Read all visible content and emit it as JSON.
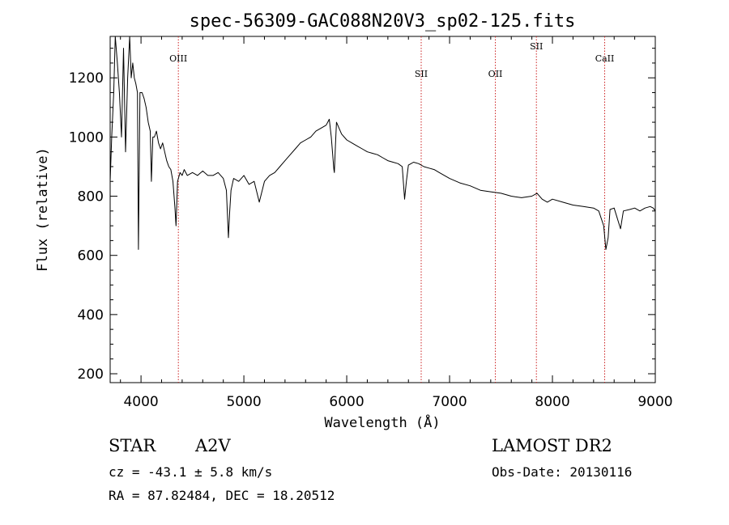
{
  "chart_data": {
    "type": "line",
    "title": "spec-56309-GAC088N20V3_sp02-125.fits",
    "xlabel": "Wavelength (Å)",
    "ylabel": "Flux (relative)",
    "xlim": [
      3700,
      9000
    ],
    "ylim": [
      170,
      1340
    ],
    "xticks": [
      4000,
      5000,
      6000,
      7000,
      8000,
      9000
    ],
    "yticks": [
      200,
      400,
      600,
      800,
      1000,
      1200
    ],
    "grid": false,
    "line_color": "#000000",
    "marker_color": "#cc2222",
    "line_markers": [
      {
        "label": "OIII",
        "wavelength": 4363
      },
      {
        "label": "SII",
        "wavelength": 6724
      },
      {
        "label": "OII",
        "wavelength": 7445
      },
      {
        "label": "SII",
        "wavelength": 7844
      },
      {
        "label": "CaII",
        "wavelength": 8508
      }
    ],
    "series": [
      {
        "x": [
          3700,
          3715,
          3735,
          3750,
          3770,
          3790,
          3810,
          3830,
          3850,
          3870,
          3890,
          3905,
          3920,
          3935,
          3950,
          3965,
          3975,
          3990,
          4010,
          4030,
          4050,
          4070,
          4090,
          4101,
          4115,
          4130,
          4150,
          4170,
          4190,
          4210,
          4230,
          4250,
          4270,
          4290,
          4310,
          4330,
          4340,
          4355,
          4380,
          4400,
          4420,
          4450,
          4500,
          4550,
          4600,
          4650,
          4700,
          4750,
          4800,
          4830,
          4850,
          4861,
          4875,
          4900,
          4950,
          5000,
          5050,
          5100,
          5150,
          5200,
          5250,
          5300,
          5350,
          5400,
          5450,
          5500,
          5550,
          5600,
          5650,
          5700,
          5750,
          5800,
          5830,
          5850,
          5875,
          5880,
          5890,
          5900,
          5950,
          6000,
          6050,
          6100,
          6150,
          6200,
          6250,
          6300,
          6350,
          6400,
          6450,
          6500,
          6540,
          6563,
          6580,
          6600,
          6650,
          6700,
          6750,
          6800,
          6850,
          6900,
          7000,
          7100,
          7200,
          7300,
          7400,
          7500,
          7600,
          7700,
          7800,
          7850,
          7900,
          7950,
          8000,
          8100,
          8200,
          8300,
          8400,
          8450,
          8498,
          8520,
          8542,
          8560,
          8600,
          8662,
          8690,
          8750,
          8800,
          8850,
          8900,
          8950,
          8980,
          9000
        ],
        "y": [
          850,
          1000,
          1150,
          1340,
          1250,
          1150,
          1000,
          1300,
          950,
          1200,
          1340,
          1200,
          1250,
          1200,
          1180,
          1150,
          620,
          1150,
          1150,
          1130,
          1100,
          1050,
          1020,
          850,
          1000,
          1000,
          1020,
          980,
          960,
          980,
          950,
          920,
          900,
          890,
          850,
          760,
          700,
          850,
          880,
          870,
          890,
          870,
          880,
          870,
          885,
          870,
          870,
          880,
          860,
          820,
          660,
          740,
          820,
          860,
          850,
          870,
          840,
          850,
          780,
          850,
          870,
          880,
          900,
          920,
          940,
          960,
          980,
          990,
          1000,
          1020,
          1030,
          1040,
          1060,
          1000,
          890,
          880,
          970,
          1050,
          1010,
          990,
          980,
          970,
          960,
          950,
          945,
          940,
          930,
          920,
          915,
          910,
          900,
          790,
          850,
          905,
          915,
          910,
          900,
          895,
          890,
          880,
          860,
          845,
          835,
          820,
          815,
          810,
          800,
          795,
          800,
          810,
          790,
          780,
          790,
          780,
          770,
          765,
          760,
          750,
          700,
          620,
          660,
          755,
          760,
          690,
          750,
          755,
          760,
          750,
          760,
          765,
          760,
          750
        ]
      }
    ]
  },
  "footer": {
    "object_class": "STAR",
    "subclass": "A2V",
    "survey": "LAMOST DR2",
    "redshift_line": "cz = -43.1 ± 5.8 km/s",
    "obs_date_line": "Obs-Date: 20130116",
    "coords_line": "RA =  87.82484, DEC =  18.20512"
  }
}
